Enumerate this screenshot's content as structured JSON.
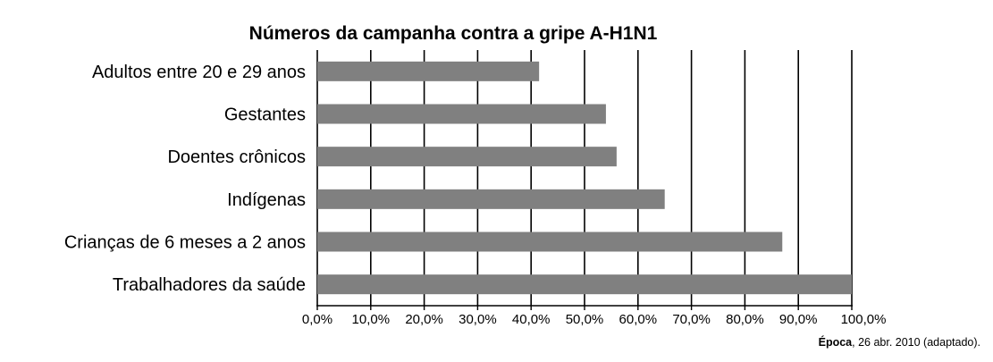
{
  "chart_data": {
    "type": "bar",
    "orientation": "horizontal",
    "title": "Números da campanha contra a gripe A-H1N1",
    "categories": [
      "Adultos entre 20 e 29 anos",
      "Gestantes",
      "Doentes crônicos",
      "Indígenas",
      "Crianças de 6 meses a 2 anos",
      "Trabalhadores da saúde"
    ],
    "values": [
      41.5,
      54,
      56,
      65,
      87,
      100
    ],
    "xlim": [
      0,
      100
    ],
    "x_ticks": [
      0,
      10,
      20,
      30,
      40,
      50,
      60,
      70,
      80,
      90,
      100
    ],
    "x_tick_labels": [
      "0,0%",
      "10,0%",
      "20,0%",
      "30,0%",
      "40,0%",
      "50,0%",
      "60,0%",
      "70,0%",
      "80,0%",
      "90,0%",
      "100,0%"
    ],
    "grid": "vertical",
    "bar_color": "#808080"
  },
  "source": {
    "name": "Época",
    "rest": ", 26 abr. 2010 (adaptado)."
  }
}
